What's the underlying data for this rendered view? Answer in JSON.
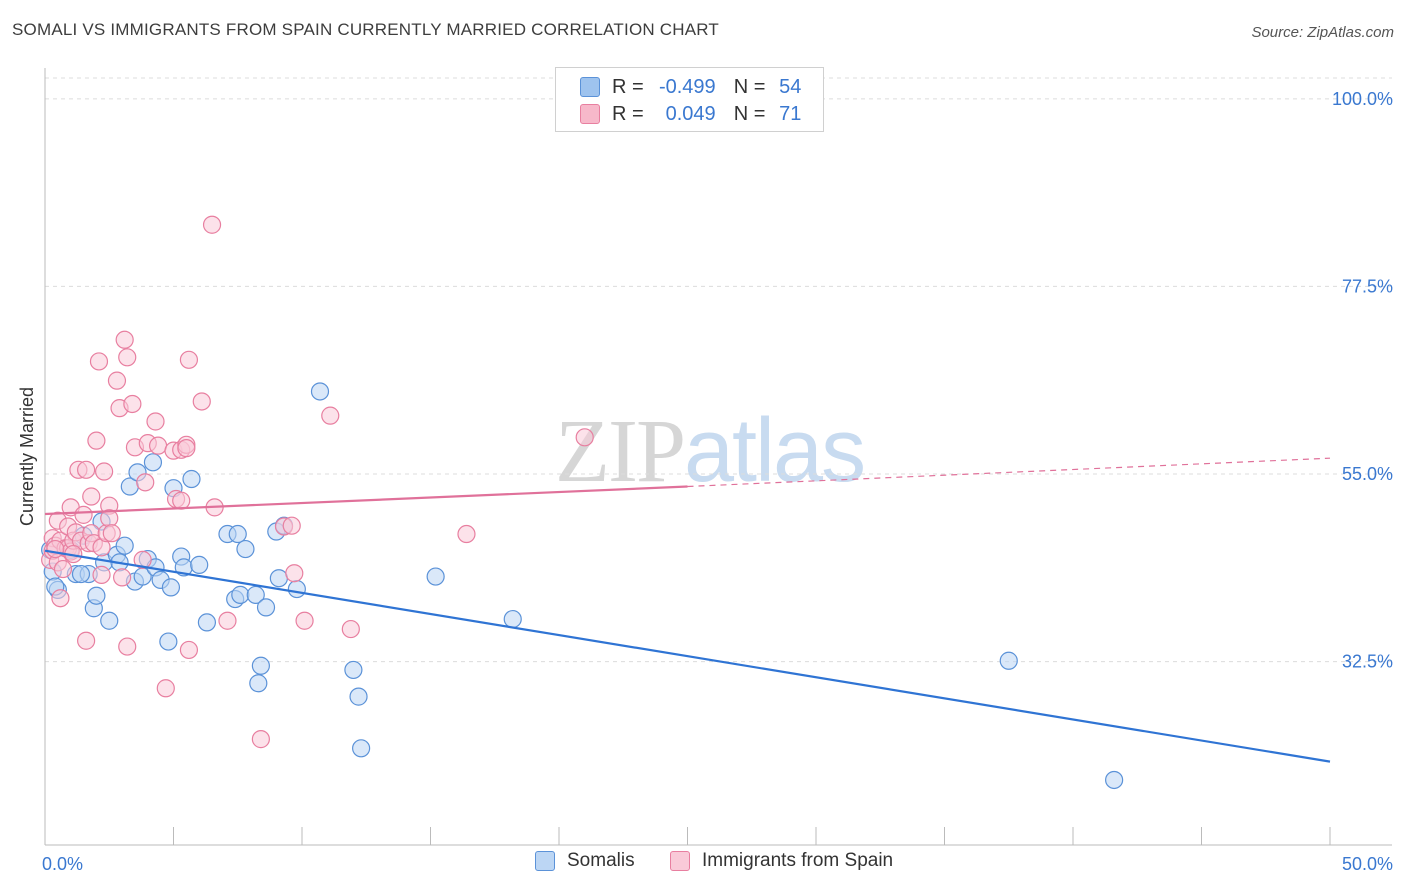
{
  "title": "SOMALI VS IMMIGRANTS FROM SPAIN CURRENTLY MARRIED CORRELATION CHART",
  "source": "Source: ZipAtlas.com",
  "watermark": {
    "part1": "ZIP",
    "part2": "atlas"
  },
  "legend": {
    "r_label": "R =",
    "n_label": "N =",
    "rows": [
      {
        "r": "-0.499",
        "n": "54",
        "color": "#9ec3ee",
        "border": "#5b92d8"
      },
      {
        "r": "0.049",
        "n": "71",
        "color": "#f7b8ca",
        "border": "#e87fa0"
      }
    ]
  },
  "bottom_legend": [
    {
      "label": "Somalis",
      "color": "#bcd6f4",
      "border": "#5b92d8"
    },
    {
      "label": "Immigrants from Spain",
      "color": "#f9cad8",
      "border": "#e87fa0"
    }
  ],
  "chart_data": {
    "type": "scatter",
    "title": "SOMALI VS IMMIGRANTS FROM SPAIN CURRENTLY MARRIED CORRELATION CHART",
    "xlabel": "",
    "ylabel": "Currently Married",
    "xlim": [
      0,
      50
    ],
    "ylim": [
      10.5,
      102.5
    ],
    "x_tick_labels": [
      {
        "value": 0,
        "label": "0.0%"
      },
      {
        "value": 50,
        "label": "50.0%"
      }
    ],
    "y_tick_labels": [
      {
        "value": 32.5,
        "label": "32.5%"
      },
      {
        "value": 55.0,
        "label": "55.0%"
      },
      {
        "value": 77.5,
        "label": "77.5%"
      },
      {
        "value": 100.0,
        "label": "100.0%"
      }
    ],
    "grid": true,
    "legend_position": "top-center",
    "series": [
      {
        "name": "Somalis",
        "color": "#5b92d8",
        "fill": "#bcd6f4",
        "trend": {
          "x": [
            0,
            50
          ],
          "y": [
            45.8,
            20.5
          ],
          "dashed_after": null
        },
        "points": [
          [
            0.3,
            43.3
          ],
          [
            0.5,
            41.1
          ],
          [
            0.4,
            41.5
          ],
          [
            1.0,
            45.9
          ],
          [
            1.2,
            43.0
          ],
          [
            1.5,
            47.6
          ],
          [
            1.7,
            43.0
          ],
          [
            1.9,
            38.9
          ],
          [
            2.0,
            40.4
          ],
          [
            2.2,
            49.3
          ],
          [
            2.3,
            44.4
          ],
          [
            2.5,
            37.4
          ],
          [
            2.8,
            45.3
          ],
          [
            2.9,
            44.4
          ],
          [
            3.1,
            46.4
          ],
          [
            3.3,
            53.5
          ],
          [
            3.5,
            42.1
          ],
          [
            3.6,
            55.2
          ],
          [
            3.8,
            42.7
          ],
          [
            4.0,
            44.8
          ],
          [
            4.2,
            56.4
          ],
          [
            4.3,
            43.8
          ],
          [
            4.5,
            42.3
          ],
          [
            4.8,
            34.9
          ],
          [
            4.9,
            41.4
          ],
          [
            5.0,
            53.3
          ],
          [
            5.3,
            45.1
          ],
          [
            5.4,
            43.8
          ],
          [
            5.7,
            54.4
          ],
          [
            6.0,
            44.1
          ],
          [
            6.3,
            37.2
          ],
          [
            7.1,
            47.8
          ],
          [
            7.4,
            40.0
          ],
          [
            7.5,
            47.8
          ],
          [
            7.6,
            40.5
          ],
          [
            7.8,
            46.0
          ],
          [
            8.2,
            40.5
          ],
          [
            8.3,
            29.9
          ],
          [
            8.4,
            32.0
          ],
          [
            8.6,
            39.0
          ],
          [
            9.0,
            48.1
          ],
          [
            9.1,
            42.5
          ],
          [
            9.3,
            48.8
          ],
          [
            9.8,
            41.2
          ],
          [
            10.7,
            64.9
          ],
          [
            12.0,
            31.5
          ],
          [
            12.2,
            28.3
          ],
          [
            12.3,
            22.1
          ],
          [
            15.2,
            42.7
          ],
          [
            18.2,
            37.6
          ],
          [
            37.5,
            32.6
          ],
          [
            41.6,
            18.3
          ],
          [
            0.2,
            45.9
          ],
          [
            1.4,
            43.0
          ]
        ]
      },
      {
        "name": "Immigrants from Spain",
        "color": "#e87fa0",
        "fill": "#f9cad8",
        "trend": {
          "x": [
            0,
            25,
            50
          ],
          "y": [
            50.2,
            53.5,
            56.9
          ],
          "dashed_after": 25
        },
        "points": [
          [
            0.2,
            44.7
          ],
          [
            0.3,
            45.8
          ],
          [
            0.3,
            47.3
          ],
          [
            0.4,
            46.4
          ],
          [
            0.5,
            44.4
          ],
          [
            0.5,
            49.4
          ],
          [
            0.6,
            40.1
          ],
          [
            0.6,
            47.0
          ],
          [
            0.7,
            43.6
          ],
          [
            0.8,
            46.1
          ],
          [
            0.9,
            48.7
          ],
          [
            0.9,
            46.1
          ],
          [
            1.0,
            51.0
          ],
          [
            1.0,
            45.7
          ],
          [
            1.1,
            47.0
          ],
          [
            1.2,
            48.0
          ],
          [
            1.3,
            55.5
          ],
          [
            1.4,
            47.0
          ],
          [
            1.5,
            50.1
          ],
          [
            1.6,
            55.5
          ],
          [
            1.6,
            35.0
          ],
          [
            1.7,
            46.7
          ],
          [
            1.8,
            47.9
          ],
          [
            1.8,
            52.3
          ],
          [
            1.9,
            46.7
          ],
          [
            2.0,
            59.0
          ],
          [
            2.1,
            68.5
          ],
          [
            2.2,
            46.2
          ],
          [
            2.2,
            42.9
          ],
          [
            2.3,
            55.3
          ],
          [
            2.4,
            47.9
          ],
          [
            2.5,
            51.2
          ],
          [
            2.5,
            49.7
          ],
          [
            2.6,
            47.9
          ],
          [
            2.8,
            66.2
          ],
          [
            2.9,
            62.9
          ],
          [
            3.0,
            42.6
          ],
          [
            3.1,
            71.1
          ],
          [
            3.2,
            69.0
          ],
          [
            3.2,
            34.3
          ],
          [
            3.4,
            63.4
          ],
          [
            3.5,
            58.2
          ],
          [
            3.8,
            44.7
          ],
          [
            3.9,
            54.0
          ],
          [
            4.0,
            58.7
          ],
          [
            4.3,
            61.3
          ],
          [
            4.4,
            58.4
          ],
          [
            4.7,
            29.3
          ],
          [
            5.0,
            57.8
          ],
          [
            5.1,
            52.0
          ],
          [
            5.3,
            51.8
          ],
          [
            5.3,
            57.9
          ],
          [
            5.5,
            58.5
          ],
          [
            5.5,
            58.1
          ],
          [
            5.6,
            33.9
          ],
          [
            5.6,
            68.7
          ],
          [
            6.1,
            63.7
          ],
          [
            6.5,
            84.9
          ],
          [
            6.6,
            51.0
          ],
          [
            7.1,
            37.4
          ],
          [
            8.4,
            23.2
          ],
          [
            9.3,
            48.7
          ],
          [
            9.6,
            48.8
          ],
          [
            9.7,
            43.1
          ],
          [
            10.1,
            37.4
          ],
          [
            11.1,
            62.0
          ],
          [
            11.9,
            36.4
          ],
          [
            16.4,
            47.8
          ],
          [
            21.0,
            59.4
          ],
          [
            0.4,
            46.0
          ],
          [
            1.1,
            45.4
          ]
        ]
      }
    ]
  }
}
